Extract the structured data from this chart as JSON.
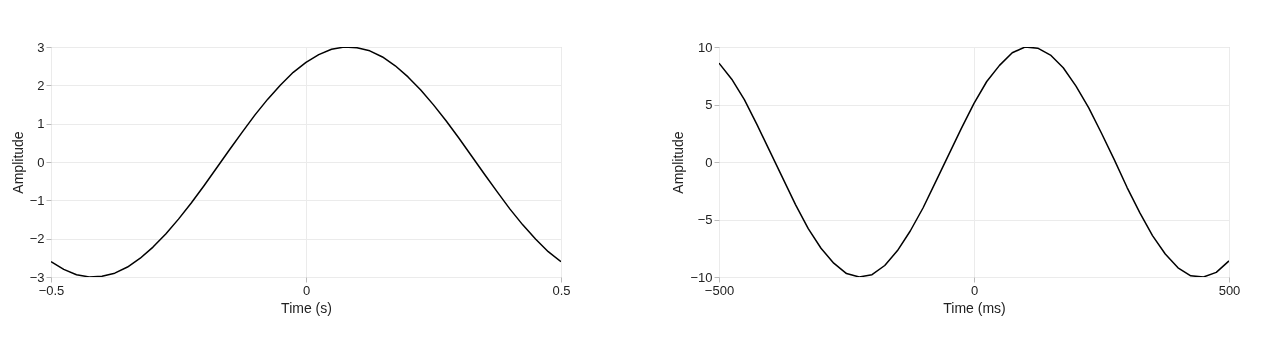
{
  "chart_data": [
    {
      "type": "line",
      "xlabel": "Time (s)",
      "ylabel": "Amplitude",
      "xlim": [
        -0.5,
        0.5
      ],
      "xticks": [
        -0.5,
        0,
        0.5
      ],
      "ylim": [
        -3,
        3
      ],
      "yticks": [
        -3,
        -2,
        -1,
        0,
        1,
        2,
        3
      ],
      "grid": true,
      "marker": "none",
      "line_style": "solid",
      "x": [
        -0.5,
        -0.475,
        -0.45,
        -0.425,
        -0.4,
        -0.375,
        -0.35,
        -0.325,
        -0.3,
        -0.275,
        -0.25,
        -0.225,
        -0.2,
        -0.175,
        -0.15,
        -0.125,
        -0.1,
        -0.075,
        -0.05,
        -0.025,
        0,
        0.025,
        0.05,
        0.075,
        0.1,
        0.125,
        0.15,
        0.175,
        0.2,
        0.225,
        0.25,
        0.275,
        0.3,
        0.325,
        0.35,
        0.375,
        0.4,
        0.425,
        0.45,
        0.475,
        0.5
      ],
      "series": [
        {
          "color": "#000000",
          "values": [
            -2.6,
            -2.8,
            -2.94,
            -3.0,
            -2.98,
            -2.9,
            -2.74,
            -2.51,
            -2.22,
            -1.88,
            -1.49,
            -1.07,
            -0.62,
            -0.15,
            0.32,
            0.78,
            1.23,
            1.64,
            2.01,
            2.34,
            2.6,
            2.8,
            2.94,
            3.0,
            2.98,
            2.9,
            2.74,
            2.51,
            2.22,
            1.88,
            1.49,
            1.07,
            0.62,
            0.15,
            -0.32,
            -0.78,
            -1.23,
            -1.64,
            -2.01,
            -2.34,
            -2.6
          ]
        }
      ]
    },
    {
      "type": "line",
      "xlabel": "Time (ms)",
      "ylabel": "Amplitude",
      "xlim": [
        -500,
        500
      ],
      "xticks": [
        -500,
        0,
        500
      ],
      "ylim": [
        -10,
        10
      ],
      "yticks": [
        -10,
        -5,
        0,
        5,
        10
      ],
      "grid": true,
      "marker": "none",
      "line_style": "solid",
      "x": [
        -500,
        -475,
        -450,
        -425,
        -400,
        -375,
        -350,
        -325,
        -300,
        -275,
        -250,
        -225,
        -200,
        -175,
        -150,
        -125,
        -100,
        -75,
        -50,
        -25,
        0,
        25,
        50,
        75,
        100,
        125,
        150,
        175,
        200,
        225,
        250,
        275,
        300,
        325,
        350,
        375,
        400,
        425,
        450,
        475,
        500
      ],
      "series": [
        {
          "color": "#000000",
          "values": [
            8.6,
            7.2,
            5.4,
            3.2,
            0.9,
            -1.4,
            -3.7,
            -5.8,
            -7.5,
            -8.8,
            -9.7,
            -10.0,
            -9.8,
            -9.0,
            -7.7,
            -6.0,
            -4.0,
            -1.7,
            0.6,
            2.9,
            5.1,
            7.0,
            8.4,
            9.5,
            10.0,
            9.9,
            9.3,
            8.2,
            6.6,
            4.7,
            2.5,
            0.2,
            -2.2,
            -4.4,
            -6.4,
            -8.0,
            -9.2,
            -9.9,
            -10.0,
            -9.6,
            -8.6
          ]
        }
      ]
    }
  ]
}
